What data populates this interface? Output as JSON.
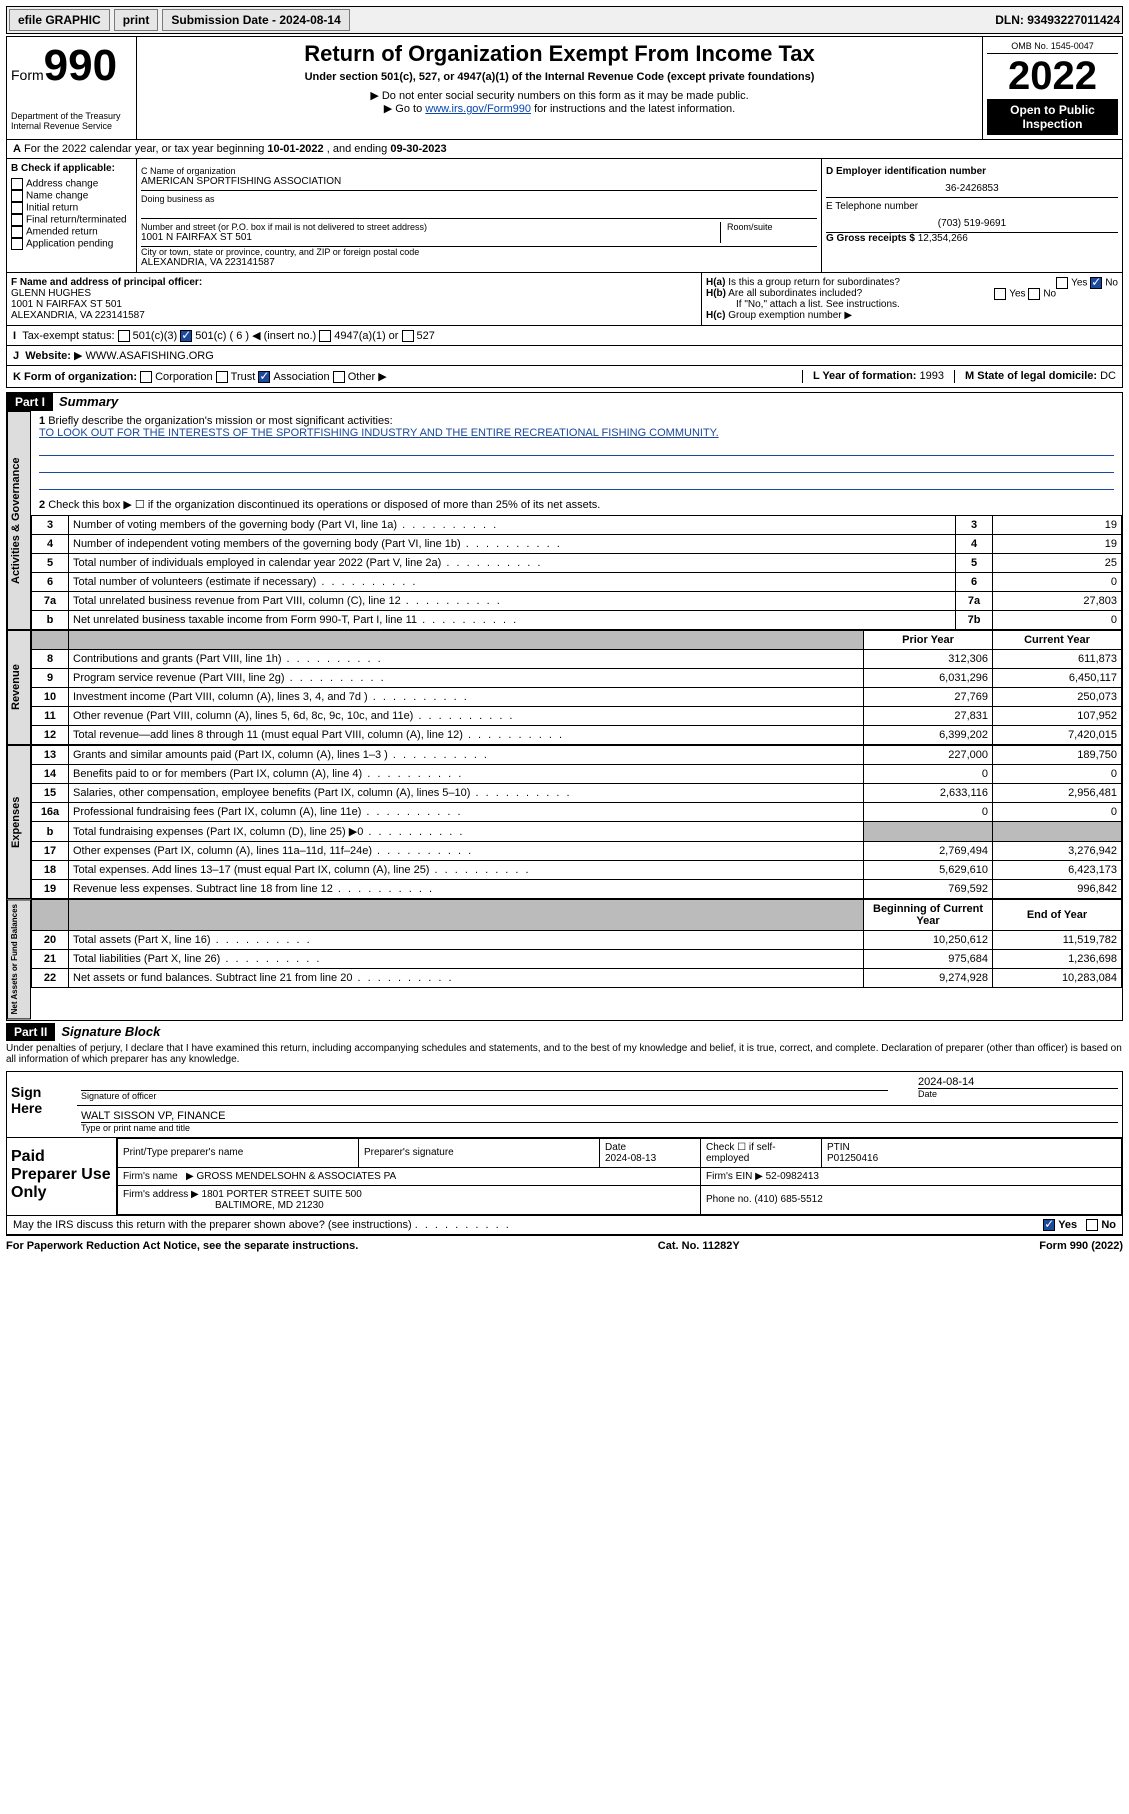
{
  "topbar": {
    "efile": "efile GRAPHIC",
    "print": "print",
    "submission_label": "Submission Date - 2024-08-14",
    "dln": "DLN: 93493227011424"
  },
  "header": {
    "form_prefix": "Form",
    "form_number": "990",
    "dept": "Department of the Treasury",
    "irs": "Internal Revenue Service",
    "title": "Return of Organization Exempt From Income Tax",
    "subtitle": "Under section 501(c), 527, or 4947(a)(1) of the Internal Revenue Code (except private foundations)",
    "note1": "Do not enter social security numbers on this form as it may be made public.",
    "note2": "Go to ",
    "link": "www.irs.gov/Form990",
    "note2b": " for instructions and the latest information.",
    "omb": "OMB No. 1545-0047",
    "year": "2022",
    "inspection": "Open to Public Inspection"
  },
  "period": {
    "label_a": "For the 2022 calendar year, or tax year beginning ",
    "begin": "10-01-2022",
    "label_b": " , and ending ",
    "end": "09-30-2023"
  },
  "boxB": {
    "label": "B Check if applicable:",
    "items": [
      "Address change",
      "Name change",
      "Initial return",
      "Final return/terminated",
      "Amended return",
      "Application pending"
    ]
  },
  "boxC": {
    "label": "C Name of organization",
    "org": "AMERICAN SPORTFISHING ASSOCIATION",
    "dba_label": "Doing business as",
    "street_label": "Number and street (or P.O. box if mail is not delivered to street address)",
    "room_label": "Room/suite",
    "street": "1001 N FAIRFAX ST 501",
    "city_label": "City or town, state or province, country, and ZIP or foreign postal code",
    "city": "ALEXANDRIA, VA  223141587"
  },
  "boxD": {
    "label": "D Employer identification number",
    "ein": "36-2426853"
  },
  "boxE": {
    "label": "E Telephone number",
    "phone": "(703) 519-9691"
  },
  "boxG": {
    "label": "G Gross receipts $",
    "amount": "12,354,266"
  },
  "boxF": {
    "label": "F Name and address of principal officer:",
    "name": "GLENN HUGHES",
    "street": "1001 N FAIRFAX ST 501",
    "city": "ALEXANDRIA, VA  223141587"
  },
  "boxH": {
    "ha": "Is this a group return for subordinates?",
    "hb": "Are all subordinates included?",
    "hb_note": "If \"No,\" attach a list. See instructions.",
    "hc": "Group exemption number"
  },
  "boxI": {
    "label": "Tax-exempt status:",
    "opts": [
      "501(c)(3)",
      "501(c) ( 6 ) ◀ (insert no.)",
      "4947(a)(1) or",
      "527"
    ]
  },
  "boxJ": {
    "label": "Website:",
    "url": "WWW.ASAFISHING.ORG"
  },
  "boxK": {
    "label": "K Form of organization:",
    "opts": [
      "Corporation",
      "Trust",
      "Association",
      "Other"
    ]
  },
  "boxL": {
    "label": "L Year of formation:",
    "val": "1993"
  },
  "boxM": {
    "label": "M State of legal domicile:",
    "val": "DC"
  },
  "part1": {
    "hdr": "Part I",
    "title": "Summary",
    "line1_label": "Briefly describe the organization's mission or most significant activities:",
    "line1_text": "TO LOOK OUT FOR THE INTERESTS OF THE SPORTFISHING INDUSTRY AND THE ENTIRE RECREATIONAL FISHING COMMUNITY.",
    "line2": "Check this box ▶ ☐  if the organization discontinued its operations or disposed of more than 25% of its net assets.",
    "gov_rows": [
      {
        "n": "3",
        "desc": "Number of voting members of the governing body (Part VI, line 1a)",
        "ln": "3",
        "val": "19"
      },
      {
        "n": "4",
        "desc": "Number of independent voting members of the governing body (Part VI, line 1b)",
        "ln": "4",
        "val": "19"
      },
      {
        "n": "5",
        "desc": "Total number of individuals employed in calendar year 2022 (Part V, line 2a)",
        "ln": "5",
        "val": "25"
      },
      {
        "n": "6",
        "desc": "Total number of volunteers (estimate if necessary)",
        "ln": "6",
        "val": "0"
      },
      {
        "n": "7a",
        "desc": "Total unrelated business revenue from Part VIII, column (C), line 12",
        "ln": "7a",
        "val": "27,803"
      },
      {
        "n": "b",
        "desc": "Net unrelated business taxable income from Form 990-T, Part I, line 11",
        "ln": "7b",
        "val": "0"
      }
    ],
    "col_headers": {
      "prior": "Prior Year",
      "current": "Current Year"
    },
    "rev_rows": [
      {
        "n": "8",
        "desc": "Contributions and grants (Part VIII, line 1h)",
        "p": "312,306",
        "c": "611,873"
      },
      {
        "n": "9",
        "desc": "Program service revenue (Part VIII, line 2g)",
        "p": "6,031,296",
        "c": "6,450,117"
      },
      {
        "n": "10",
        "desc": "Investment income (Part VIII, column (A), lines 3, 4, and 7d )",
        "p": "27,769",
        "c": "250,073"
      },
      {
        "n": "11",
        "desc": "Other revenue (Part VIII, column (A), lines 5, 6d, 8c, 9c, 10c, and 11e)",
        "p": "27,831",
        "c": "107,952"
      },
      {
        "n": "12",
        "desc": "Total revenue—add lines 8 through 11 (must equal Part VIII, column (A), line 12)",
        "p": "6,399,202",
        "c": "7,420,015"
      }
    ],
    "exp_rows": [
      {
        "n": "13",
        "desc": "Grants and similar amounts paid (Part IX, column (A), lines 1–3 )",
        "p": "227,000",
        "c": "189,750"
      },
      {
        "n": "14",
        "desc": "Benefits paid to or for members (Part IX, column (A), line 4)",
        "p": "0",
        "c": "0"
      },
      {
        "n": "15",
        "desc": "Salaries, other compensation, employee benefits (Part IX, column (A), lines 5–10)",
        "p": "2,633,116",
        "c": "2,956,481"
      },
      {
        "n": "16a",
        "desc": "Professional fundraising fees (Part IX, column (A), line 11e)",
        "p": "0",
        "c": "0"
      },
      {
        "n": "b",
        "desc": "Total fundraising expenses (Part IX, column (D), line 25) ▶0",
        "p": "grey",
        "c": "grey"
      },
      {
        "n": "17",
        "desc": "Other expenses (Part IX, column (A), lines 11a–11d, 11f–24e)",
        "p": "2,769,494",
        "c": "3,276,942"
      },
      {
        "n": "18",
        "desc": "Total expenses. Add lines 13–17 (must equal Part IX, column (A), line 25)",
        "p": "5,629,610",
        "c": "6,423,173"
      },
      {
        "n": "19",
        "desc": "Revenue less expenses. Subtract line 18 from line 12",
        "p": "769,592",
        "c": "996,842"
      }
    ],
    "na_headers": {
      "b": "Beginning of Current Year",
      "e": "End of Year"
    },
    "na_rows": [
      {
        "n": "20",
        "desc": "Total assets (Part X, line 16)",
        "p": "10,250,612",
        "c": "11,519,782"
      },
      {
        "n": "21",
        "desc": "Total liabilities (Part X, line 26)",
        "p": "975,684",
        "c": "1,236,698"
      },
      {
        "n": "22",
        "desc": "Net assets or fund balances. Subtract line 21 from line 20",
        "p": "9,274,928",
        "c": "10,283,084"
      }
    ],
    "vtabs": {
      "gov": "Activities & Governance",
      "rev": "Revenue",
      "exp": "Expenses",
      "na": "Net Assets or Fund Balances"
    }
  },
  "part2": {
    "hdr": "Part II",
    "title": "Signature Block",
    "decl": "Under penalties of perjury, I declare that I have examined this return, including accompanying schedules and statements, and to the best of my knowledge and belief, it is true, correct, and complete. Declaration of preparer (other than officer) is based on all information of which preparer has any knowledge."
  },
  "sign": {
    "label": "Sign Here",
    "sig_label": "Signature of officer",
    "date_label": "Date",
    "date": "2024-08-14",
    "name": "WALT SISSON  VP, FINANCE",
    "name_label": "Type or print name and title"
  },
  "prep": {
    "label": "Paid Preparer Use Only",
    "h1": "Print/Type preparer's name",
    "h2": "Preparer's signature",
    "h3": "Date",
    "date": "2024-08-13",
    "h4": "Check ☐ if self-employed",
    "h5": "PTIN",
    "ptin": "P01250416",
    "firm_label": "Firm's name",
    "firm": "GROSS MENDELSOHN & ASSOCIATES PA",
    "ein_label": "Firm's EIN",
    "ein": "52-0982413",
    "addr_label": "Firm's address",
    "addr1": "1801 PORTER STREET SUITE 500",
    "addr2": "BALTIMORE, MD  21230",
    "phone_label": "Phone no.",
    "phone": "(410) 685-5512"
  },
  "discuss": {
    "q": "May the IRS discuss this return with the preparer shown above? (see instructions)",
    "yes": "Yes",
    "no": "No"
  },
  "footer": {
    "left": "For Paperwork Reduction Act Notice, see the separate instructions.",
    "mid": "Cat. No. 11282Y",
    "right": "Form 990 (2022)"
  }
}
